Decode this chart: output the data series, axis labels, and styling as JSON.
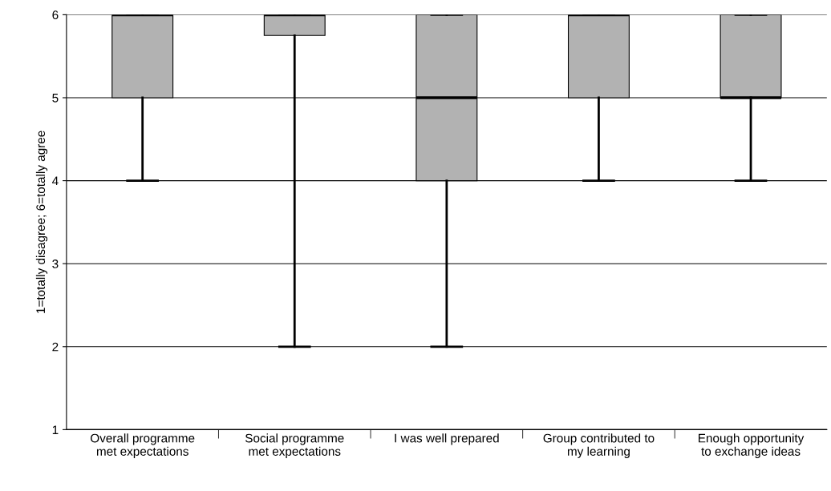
{
  "chart_data": {
    "type": "box",
    "ylabel": "1=totally disagree; 6=totally agree",
    "categories": [
      "Overall programme\nmet expectations",
      "Social programme\nmet expectations",
      "I was well prepared",
      "Group contributed to\nmy learning",
      "Enough opportunity\nto exchange ideas"
    ],
    "boxes": [
      {
        "low": 4,
        "q1": 5,
        "median": 6,
        "q3": 6,
        "high": 6
      },
      {
        "low": 2,
        "q1": 5.75,
        "median": 6,
        "q3": 6,
        "high": 6
      },
      {
        "low": 2,
        "q1": 4,
        "median": 5,
        "q3": 6,
        "high": 6
      },
      {
        "low": 4,
        "q1": 5,
        "median": 6,
        "q3": 6,
        "high": 6
      },
      {
        "low": 4,
        "q1": 5,
        "median": 5,
        "q3": 6,
        "high": 6
      }
    ],
    "color": "#b2b2b2",
    "ylim": [
      1,
      6
    ],
    "yticks": [
      1,
      2,
      3,
      4,
      5,
      6
    ],
    "grid": "y"
  }
}
